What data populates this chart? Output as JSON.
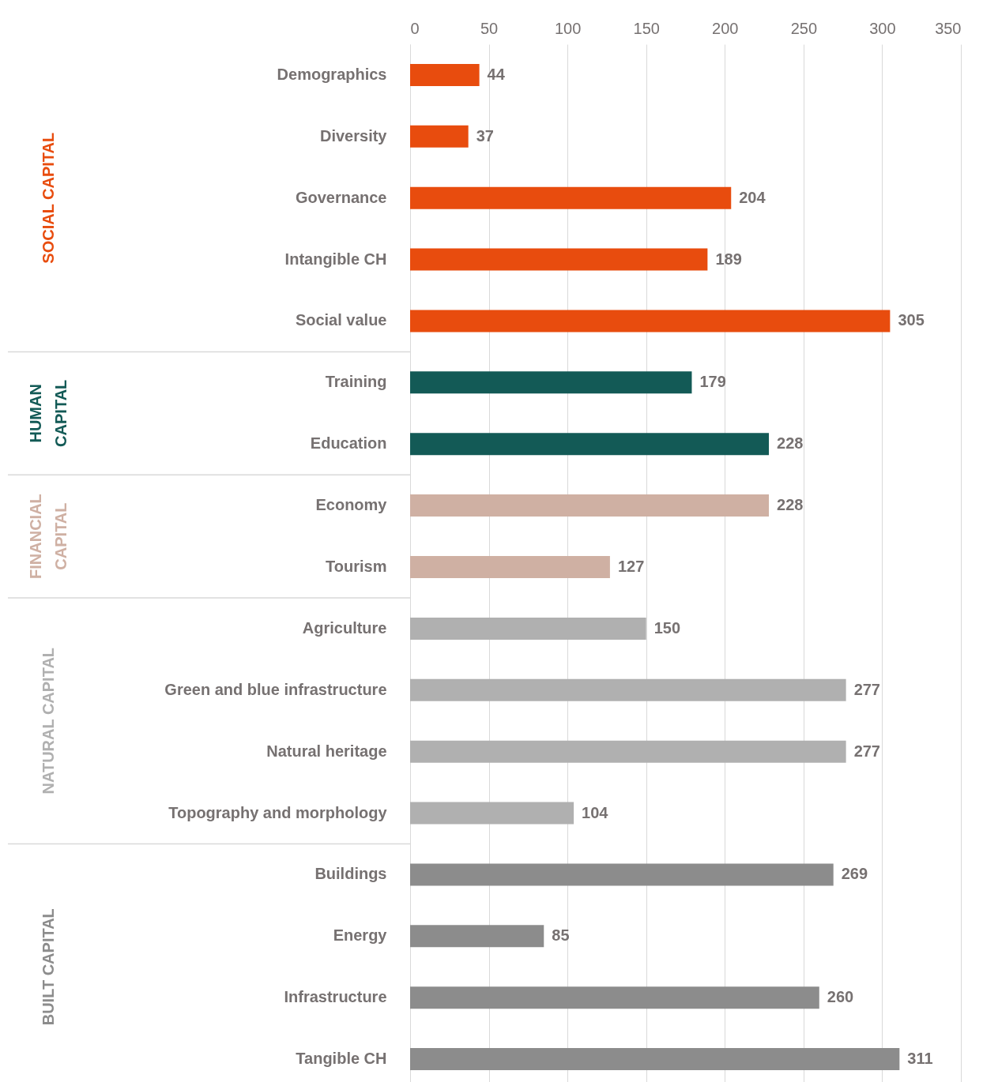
{
  "chart_data": {
    "type": "bar",
    "orientation": "horizontal",
    "data_labels": true,
    "grid": "x",
    "categories": [
      "Demographics",
      "Diversity",
      "Governance",
      "Intangible CH",
      "Social value",
      "Training",
      "Education",
      "Economy",
      "Tourism",
      "Agriculture",
      "Green and blue infrastructure",
      "Natural heritage",
      "Topography and morphology",
      "Buildings",
      "Energy",
      "Infrastructure",
      "Tangible CH"
    ],
    "xlim": [
      0,
      350
    ],
    "xticks": [
      0,
      50,
      100,
      150,
      200,
      250,
      300,
      350
    ],
    "series": [
      {
        "name": "SOCIAL CAPITAL",
        "color": "#e84c0e",
        "values": [
          44,
          37,
          204,
          189,
          305,
          null,
          null,
          null,
          null,
          null,
          null,
          null,
          null,
          null,
          null,
          null,
          null
        ]
      },
      {
        "name": "HUMAN CAPITAL",
        "color": "#135a56",
        "values": [
          null,
          null,
          null,
          null,
          null,
          179,
          228,
          null,
          null,
          null,
          null,
          null,
          null,
          null,
          null,
          null,
          null
        ]
      },
      {
        "name": "FINANCIAL CAPITAL",
        "color": "#cfb0a3",
        "values": [
          null,
          null,
          null,
          null,
          null,
          null,
          null,
          228,
          127,
          null,
          null,
          null,
          null,
          null,
          null,
          null,
          null
        ]
      },
      {
        "name": "NATURAL CAPITAL",
        "color": "#b0b0b0",
        "values": [
          null,
          null,
          null,
          null,
          null,
          null,
          null,
          null,
          null,
          150,
          277,
          277,
          104,
          null,
          null,
          null,
          null
        ]
      },
      {
        "name": "BUILT CAPITAL",
        "color": "#8c8c8c",
        "values": [
          null,
          null,
          null,
          null,
          null,
          null,
          null,
          null,
          null,
          null,
          null,
          null,
          null,
          269,
          85,
          260,
          311
        ]
      }
    ]
  }
}
